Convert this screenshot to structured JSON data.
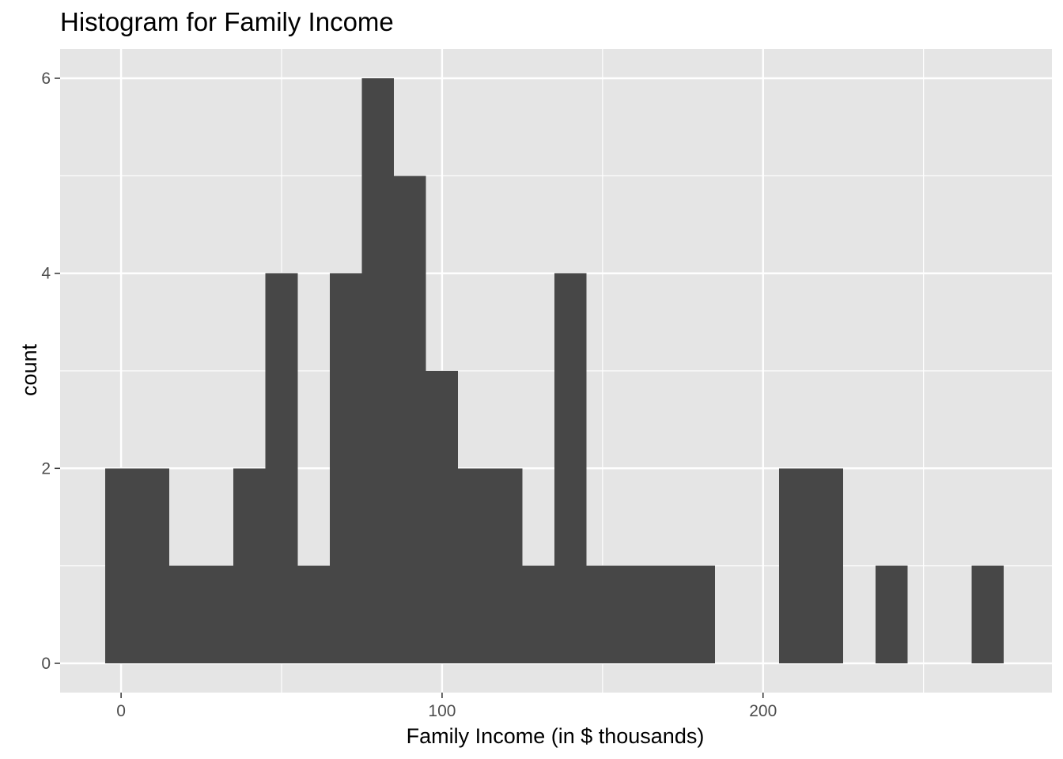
{
  "chart_data": {
    "type": "bar",
    "subtype": "histogram",
    "title": "Histogram for Family Income",
    "xlabel": "Family Income (in $ thousands)",
    "ylabel": "count",
    "xlim": [
      -19,
      290
    ],
    "ylim": [
      -0.3,
      6.3
    ],
    "x_ticks": [
      0,
      100,
      200
    ],
    "x_minor_ticks": [
      50,
      150,
      250
    ],
    "y_ticks": [
      0,
      2,
      4,
      6
    ],
    "y_minor_ticks": [
      1,
      3,
      5
    ],
    "bin_width": 10,
    "bins": [
      {
        "start": -5,
        "end": 5,
        "count": 2
      },
      {
        "start": 5,
        "end": 15,
        "count": 2
      },
      {
        "start": 15,
        "end": 25,
        "count": 1
      },
      {
        "start": 25,
        "end": 35,
        "count": 1
      },
      {
        "start": 35,
        "end": 45,
        "count": 2
      },
      {
        "start": 45,
        "end": 55,
        "count": 4
      },
      {
        "start": 55,
        "end": 65,
        "count": 1
      },
      {
        "start": 65,
        "end": 75,
        "count": 4
      },
      {
        "start": 75,
        "end": 85,
        "count": 6
      },
      {
        "start": 85,
        "end": 95,
        "count": 5
      },
      {
        "start": 95,
        "end": 105,
        "count": 3
      },
      {
        "start": 105,
        "end": 115,
        "count": 2
      },
      {
        "start": 115,
        "end": 125,
        "count": 2
      },
      {
        "start": 125,
        "end": 135,
        "count": 1
      },
      {
        "start": 135,
        "end": 145,
        "count": 4
      },
      {
        "start": 145,
        "end": 155,
        "count": 1
      },
      {
        "start": 155,
        "end": 165,
        "count": 1
      },
      {
        "start": 165,
        "end": 175,
        "count": 1
      },
      {
        "start": 175,
        "end": 185,
        "count": 1
      },
      {
        "start": 185,
        "end": 195,
        "count": 0
      },
      {
        "start": 195,
        "end": 205,
        "count": 0
      },
      {
        "start": 205,
        "end": 215,
        "count": 2
      },
      {
        "start": 215,
        "end": 225,
        "count": 2
      },
      {
        "start": 225,
        "end": 235,
        "count": 0
      },
      {
        "start": 235,
        "end": 245,
        "count": 1
      },
      {
        "start": 245,
        "end": 255,
        "count": 0
      },
      {
        "start": 255,
        "end": 265,
        "count": 0
      },
      {
        "start": 265,
        "end": 275,
        "count": 1
      }
    ],
    "grid": true,
    "colors": {
      "panel_background": "#e5e5e5",
      "grid_line": "#ffffff",
      "bar_fill": "#474747",
      "tick_mark": "#333333",
      "tick_label": "#4d4d4d"
    }
  }
}
